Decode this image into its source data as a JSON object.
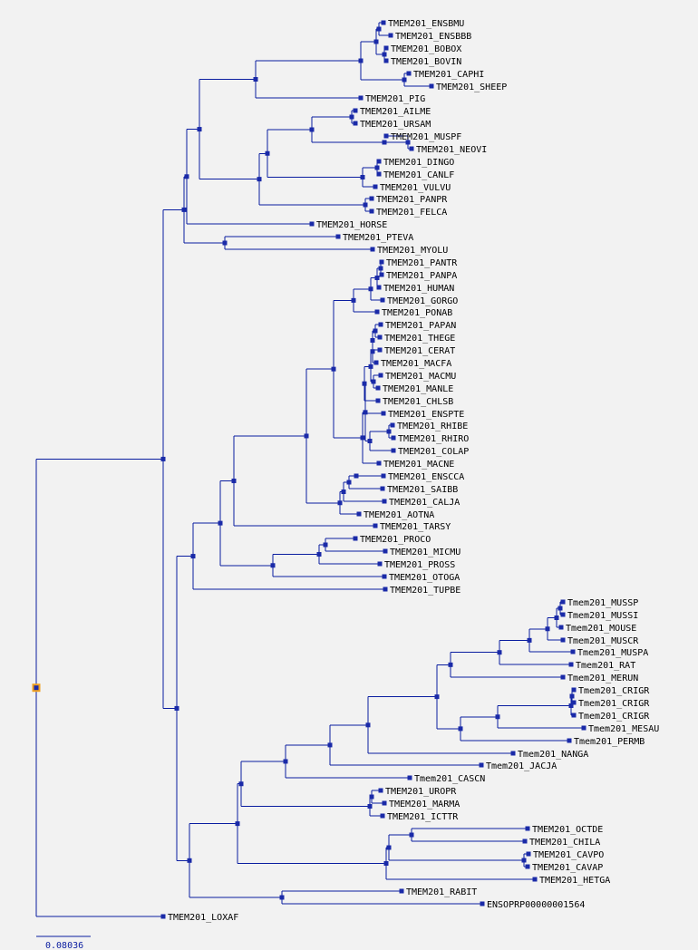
{
  "tree": {
    "leaves": [
      "TMEM201_ENSBMU",
      "TMEM201_ENSBBB",
      "TMEM201_BOBOX",
      "TMEM201_BOVIN",
      "TMEM201_CAPHI",
      "TMEM201_SHEEP",
      "TMEM201_PIG",
      "TMEM201_AILME",
      "TMEM201_URSAM",
      "TMEM201_MUSPF",
      "TMEM201_NEOVI",
      "TMEM201_DINGO",
      "TMEM201_CANLF",
      "TMEM201_VULVU",
      "TMEM201_PANPR",
      "TMEM201_FELCA",
      "TMEM201_HORSE",
      "TMEM201_PTEVA",
      "TMEM201_MYOLU",
      "TMEM201_PANTR",
      "TMEM201_PANPA",
      "TMEM201_HUMAN",
      "TMEM201_GORGO",
      "TMEM201_PONAB",
      "TMEM201_PAPAN",
      "TMEM201_THEGE",
      "TMEM201_CERAT",
      "TMEM201_MACFA",
      "TMEM201_MACMU",
      "TMEM201_MANLE",
      "TMEM201_CHLSB",
      "TMEM201_ENSPTE",
      "TMEM201_RHIBE",
      "TMEM201_RHIRO",
      "TMEM201_COLAP",
      "TMEM201_MACNE",
      "TMEM201_ENSCCA",
      "TMEM201_SAIBB",
      "TMEM201_CALJA",
      "TMEM201_AOTNA",
      "TMEM201_TARSY",
      "TMEM201_PROCO",
      "TMEM201_MICMU",
      "TMEM201_PROSS",
      "TMEM201_OTOGA",
      "TMEM201_TUPBE",
      "Tmem201_MUSSP",
      "Tmem201_MUSSI",
      "Tmem201_MOUSE",
      "Tmem201_MUSCR",
      "Tmem201_MUSPA",
      "Tmem201_RAT",
      "Tmem201_MERUN",
      "Tmem201_CRIGR",
      "Tmem201_CRIGR",
      "Tmem201_CRIGR",
      "Tmem201_MESAU",
      "Tmem201_PERMB",
      "Tmem201_NANGA",
      "Tmem201_JACJA",
      "Tmem201_CASCN",
      "TMEM201_UROPR",
      "TMEM201_MARMA",
      "TMEM201_ICTTR",
      "TMEM201_OCTDE",
      "TMEM201_CHILA",
      "TMEM201_CAVPO",
      "TMEM201_CAVAP",
      "TMEM201_HETGA",
      "TMEM201_RABIT",
      "ENSOPRP00000001564",
      "TMEM201_LOXAF"
    ],
    "scale_label": "0.08036"
  },
  "colors": {
    "branch": "#0a1da0",
    "node": "#1a2aa8",
    "root_marker": "#f0a020",
    "background": "#f2f2f2"
  }
}
